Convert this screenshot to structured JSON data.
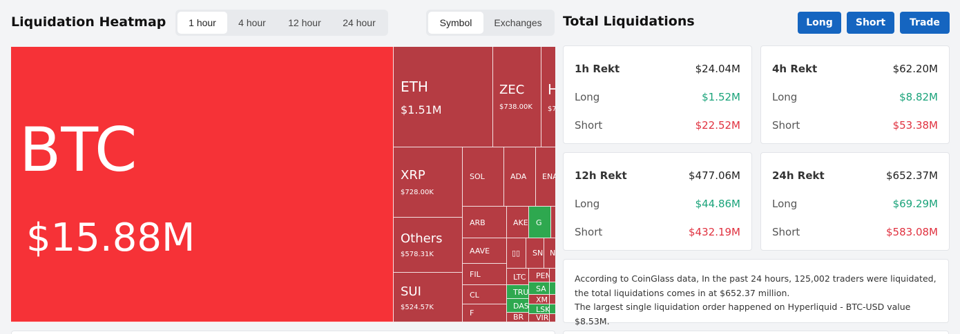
{
  "heatmap": {
    "title": "Liquidation Heatmap",
    "timeframes": [
      "1 hour",
      "4 hour",
      "12 hour",
      "24 hour"
    ],
    "active_timeframe": "1 hour",
    "groupings": [
      "Symbol",
      "Exchanges"
    ],
    "active_grouping": "Symbol",
    "cells": [
      {
        "symbol": "BTC",
        "value": "$15.88M"
      },
      {
        "symbol": "ETH",
        "value": "$1.51M"
      },
      {
        "symbol": "ZEC",
        "value": "$738.00K"
      },
      {
        "symbol": "H",
        "value": "$7"
      },
      {
        "symbol": "XRP",
        "value": "$728.00K"
      },
      {
        "symbol": "SOL",
        "value": ""
      },
      {
        "symbol": "ADA",
        "value": ""
      },
      {
        "symbol": "ENA",
        "value": ""
      },
      {
        "symbol": "Others",
        "value": "$578.31K"
      },
      {
        "symbol": "ARB",
        "value": ""
      },
      {
        "symbol": "AKE",
        "value": ""
      },
      {
        "symbol": "G",
        "value": ""
      },
      {
        "symbol": "AAVE",
        "value": ""
      },
      {
        "symbol": "▯▯",
        "value": ""
      },
      {
        "symbol": "SN",
        "value": ""
      },
      {
        "symbol": "N",
        "value": ""
      },
      {
        "symbol": "SUI",
        "value": "$524.57K"
      },
      {
        "symbol": "FIL",
        "value": ""
      },
      {
        "symbol": "LTC",
        "value": ""
      },
      {
        "symbol": "PEN",
        "value": ""
      },
      {
        "symbol": "CL",
        "value": ""
      },
      {
        "symbol": "TRU",
        "value": ""
      },
      {
        "symbol": "SA",
        "value": ""
      },
      {
        "symbol": "XM",
        "value": ""
      },
      {
        "symbol": "DAS",
        "value": ""
      },
      {
        "symbol": "LSK",
        "value": ""
      },
      {
        "symbol": "F",
        "value": ""
      },
      {
        "symbol": "BR",
        "value": ""
      },
      {
        "symbol": "VIR",
        "value": ""
      }
    ]
  },
  "total": {
    "title": "Total Liquidations",
    "buttons": {
      "long": "Long",
      "short": "Short",
      "trade": "Trade"
    },
    "cards": [
      {
        "label": "1h Rekt",
        "total": "$24.04M",
        "long_label": "Long",
        "long": "$1.52M",
        "short_label": "Short",
        "short": "$22.52M"
      },
      {
        "label": "4h Rekt",
        "total": "$62.20M",
        "long_label": "Long",
        "long": "$8.82M",
        "short_label": "Short",
        "short": "$53.38M"
      },
      {
        "label": "12h Rekt",
        "total": "$477.06M",
        "long_label": "Long",
        "long": "$44.86M",
        "short_label": "Short",
        "short": "$432.19M"
      },
      {
        "label": "24h Rekt",
        "total": "$652.37M",
        "long_label": "Long",
        "long": "$69.29M",
        "short_label": "Short",
        "short": "$583.08M"
      }
    ],
    "summary_line1": "According to CoinGlass data, In the past 24 hours, 125,002 traders were liquidated, the total liquidations comes in at $652.37 million.",
    "summary_line2": "The largest single liquidation order happened on Hyperliquid - BTC-USD value $8.53M."
  },
  "colors": {
    "btc_red": "#f63237",
    "cell_red": "#b53c43",
    "cell_red_alt": "#c0393f",
    "cell_green": "#2ea84f",
    "accent_blue": "#1565c0"
  }
}
